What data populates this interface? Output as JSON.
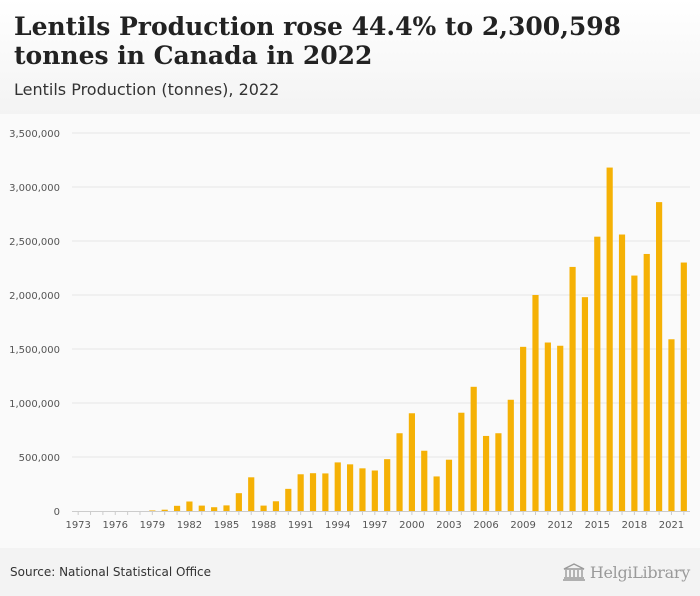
{
  "header": {
    "title": "Lentils Production rose 44.4% to 2,300,598 tonnes in Canada in 2022",
    "subtitle": "Lentils Production (tonnes), 2022"
  },
  "footer": {
    "source": "Source: National Statistical Office",
    "brand": "HelgiLibrary"
  },
  "colors": {
    "bar": "#F5B105",
    "grid": "#e6e6e6",
    "axis_text": "#555555"
  },
  "chart_data": {
    "type": "bar",
    "x": [
      1973,
      1974,
      1975,
      1976,
      1977,
      1978,
      1979,
      1980,
      1981,
      1982,
      1983,
      1984,
      1985,
      1986,
      1987,
      1988,
      1989,
      1990,
      1991,
      1992,
      1993,
      1994,
      1995,
      1996,
      1997,
      1998,
      1999,
      2000,
      2001,
      2002,
      2003,
      2004,
      2005,
      2006,
      2007,
      2008,
      2009,
      2010,
      2011,
      2012,
      2013,
      2014,
      2015,
      2016,
      2017,
      2018,
      2019,
      2020,
      2021,
      2022
    ],
    "values": [
      0,
      0,
      0,
      0,
      0,
      0,
      5000,
      12000,
      48000,
      88000,
      50000,
      35000,
      52000,
      165000,
      312000,
      50000,
      90000,
      205000,
      340000,
      350000,
      348000,
      450000,
      432000,
      395000,
      375000,
      480000,
      720000,
      905000,
      558000,
      320000,
      475000,
      910000,
      1150000,
      695000,
      720000,
      1030000,
      1520000,
      2000000,
      1560000,
      1530000,
      2260000,
      1980000,
      2540000,
      3180000,
      2560000,
      2180000,
      2380000,
      2860000,
      1590000,
      2300598
    ],
    "x_tick_labels": [
      "1973",
      "1976",
      "1979",
      "1982",
      "1985",
      "1988",
      "1991",
      "1994",
      "1997",
      "2000",
      "2003",
      "2006",
      "2009",
      "2012",
      "2015",
      "2018",
      "2021"
    ],
    "y_tick_labels": [
      "0",
      "500,000",
      "1,000,000",
      "1,500,000",
      "2,000,000",
      "2,500,000",
      "3,000,000",
      "3,500,000"
    ],
    "ylim": [
      0,
      3500000
    ],
    "xlabel": "",
    "ylabel": "",
    "grid": true,
    "legend": "none"
  }
}
